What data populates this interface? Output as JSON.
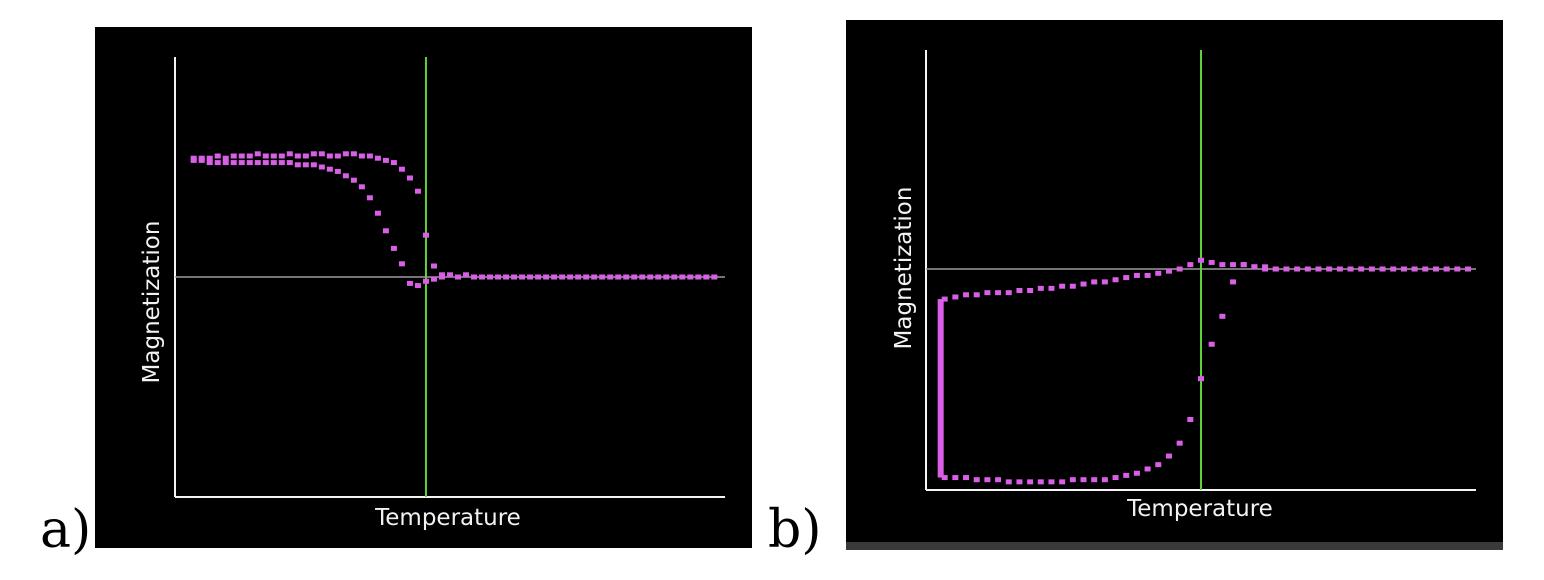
{
  "figure": {
    "panels": [
      {
        "label": "a)"
      },
      {
        "label": "b)"
      }
    ]
  },
  "colors": {
    "background": "#000000",
    "axes": "#f4f4f4",
    "zero_line": "#9a9a9a",
    "transition_line": "#5fd13a",
    "points": "#d95fe6"
  },
  "chart_data": [
    {
      "type": "scatter",
      "xlabel": "Temperature",
      "ylabel": "Magnetization",
      "xlim": [
        0,
        1
      ],
      "ylim": [
        -1,
        1
      ],
      "grid": false,
      "legend": "none",
      "zero_line_y": 0,
      "transition_x": 0.455,
      "series": [
        {
          "x": [
            0.02,
            0.035,
            0.05,
            0.065,
            0.08,
            0.095,
            0.11,
            0.125,
            0.14,
            0.155,
            0.17,
            0.185,
            0.2,
            0.215,
            0.23,
            0.245,
            0.26,
            0.275,
            0.29,
            0.305,
            0.32,
            0.335,
            0.35,
            0.365,
            0.38,
            0.395,
            0.41,
            0.425,
            0.44,
            0.455,
            0.47,
            0.485
          ],
          "y": [
            0.54,
            0.54,
            0.54,
            0.55,
            0.54,
            0.55,
            0.55,
            0.55,
            0.56,
            0.55,
            0.55,
            0.55,
            0.56,
            0.55,
            0.55,
            0.56,
            0.56,
            0.55,
            0.55,
            0.56,
            0.56,
            0.55,
            0.55,
            0.54,
            0.53,
            0.52,
            0.49,
            0.45,
            0.39,
            0.19,
            0.05,
            0.0
          ]
        },
        {
          "x": [
            0.02,
            0.035,
            0.05,
            0.065,
            0.08,
            0.095,
            0.11,
            0.125,
            0.14,
            0.155,
            0.17,
            0.185,
            0.2,
            0.215,
            0.23,
            0.245,
            0.26,
            0.275,
            0.29,
            0.305,
            0.32,
            0.335,
            0.35,
            0.365,
            0.38,
            0.395,
            0.41,
            0.425,
            0.44,
            0.455,
            0.47,
            0.485,
            0.5,
            0.515,
            0.53,
            0.545,
            0.56,
            0.575,
            0.59,
            0.605,
            0.62,
            0.635,
            0.65,
            0.665,
            0.68,
            0.695,
            0.71,
            0.725,
            0.74,
            0.755,
            0.77,
            0.785,
            0.8,
            0.815,
            0.83,
            0.845,
            0.86,
            0.875,
            0.89,
            0.905,
            0.92,
            0.935,
            0.95,
            0.965,
            0.98,
            0.995
          ],
          "y": [
            0.53,
            0.53,
            0.52,
            0.52,
            0.52,
            0.52,
            0.52,
            0.52,
            0.52,
            0.52,
            0.52,
            0.52,
            0.52,
            0.51,
            0.51,
            0.51,
            0.5,
            0.49,
            0.48,
            0.46,
            0.44,
            0.41,
            0.36,
            0.29,
            0.21,
            0.13,
            0.06,
            -0.03,
            -0.04,
            -0.02,
            -0.01,
            0.01,
            0.01,
            0.0,
            0.01,
            0.0,
            0.0,
            0.0,
            0.0,
            0.0,
            0.0,
            0.0,
            0.0,
            0.0,
            0.0,
            0.0,
            0.0,
            0.0,
            0.0,
            0.0,
            0.0,
            0.0,
            0.0,
            0.0,
            0.0,
            0.0,
            0.0,
            0.0,
            0.0,
            0.0,
            0.0,
            0.0,
            0.0,
            0.0,
            0.0,
            0.0
          ]
        }
      ]
    },
    {
      "type": "scatter",
      "xlabel": "Temperature",
      "ylabel": "Magnetization",
      "xlim": [
        0,
        1
      ],
      "ylim": [
        -1,
        1
      ],
      "grid": false,
      "legend": "none",
      "zero_line_y": 0,
      "transition_x": 0.5,
      "vertical_segment": {
        "x": 0.02,
        "y_from": -0.97,
        "y_to": -0.14
      },
      "series": [
        {
          "x": [
            0.02,
            0.04,
            0.06,
            0.08,
            0.1,
            0.12,
            0.14,
            0.16,
            0.18,
            0.2,
            0.22,
            0.24,
            0.26,
            0.28,
            0.3,
            0.32,
            0.34,
            0.36,
            0.38,
            0.4,
            0.42,
            0.44,
            0.46,
            0.48,
            0.5,
            0.52,
            0.54,
            0.56,
            0.58,
            0.6,
            0.62,
            0.64,
            0.66,
            0.68,
            0.7,
            0.72,
            0.74,
            0.76,
            0.78,
            0.8,
            0.82,
            0.84,
            0.86,
            0.88,
            0.9,
            0.92,
            0.94,
            0.96,
            0.98,
            1.0
          ],
          "y": [
            -0.14,
            -0.13,
            -0.12,
            -0.12,
            -0.11,
            -0.11,
            -0.11,
            -0.1,
            -0.1,
            -0.09,
            -0.09,
            -0.08,
            -0.08,
            -0.07,
            -0.06,
            -0.06,
            -0.05,
            -0.04,
            -0.03,
            -0.03,
            -0.02,
            -0.01,
            0.0,
            0.02,
            0.04,
            0.03,
            0.02,
            0.02,
            0.02,
            0.01,
            0.01,
            0.0,
            0.0,
            0.0,
            0.0,
            0.0,
            0.0,
            0.0,
            0.0,
            0.0,
            0.0,
            0.0,
            0.0,
            0.0,
            0.0,
            0.0,
            0.0,
            0.0,
            0.0,
            0.0
          ]
        },
        {
          "x": [
            0.02,
            0.04,
            0.06,
            0.08,
            0.1,
            0.12,
            0.14,
            0.16,
            0.18,
            0.2,
            0.22,
            0.24,
            0.26,
            0.28,
            0.3,
            0.32,
            0.34,
            0.36,
            0.38,
            0.4,
            0.42,
            0.44,
            0.46,
            0.48,
            0.5,
            0.52,
            0.54,
            0.56,
            0.58,
            0.6,
            0.62,
            0.64
          ],
          "y": [
            -0.97,
            -0.97,
            -0.97,
            -0.98,
            -0.98,
            -0.98,
            -0.99,
            -0.99,
            -0.99,
            -0.99,
            -0.99,
            -0.99,
            -0.98,
            -0.98,
            -0.98,
            -0.98,
            -0.97,
            -0.96,
            -0.95,
            -0.93,
            -0.91,
            -0.87,
            -0.81,
            -0.7,
            -0.51,
            -0.35,
            -0.22,
            -0.06,
            0.02,
            0.01,
            0.0,
            0.0
          ]
        }
      ]
    }
  ]
}
